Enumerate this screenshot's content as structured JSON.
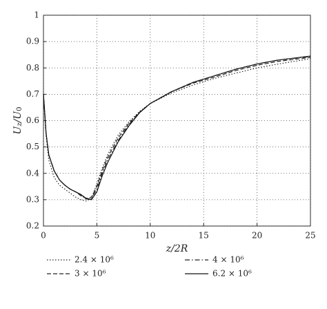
{
  "chart_data": {
    "type": "line",
    "xlabel": "z/2R",
    "ylabel": [
      "U",
      "z",
      "/U",
      "0"
    ],
    "x": [
      0,
      0.25,
      0.5,
      1,
      1.5,
      2,
      2.5,
      3,
      3.5,
      4,
      4.5,
      5,
      5.5,
      6,
      7,
      8,
      9,
      10,
      12,
      14,
      16,
      18,
      20,
      22,
      25
    ],
    "series": [
      {
        "name": "2.4 × 10⁶",
        "color": "#222222",
        "dash": "1.5 2.5",
        "values": [
          0.7,
          0.54,
          0.45,
          0.385,
          0.355,
          0.34,
          0.325,
          0.31,
          0.3,
          0.295,
          0.305,
          0.36,
          0.42,
          0.47,
          0.545,
          0.595,
          0.635,
          0.665,
          0.705,
          0.735,
          0.76,
          0.78,
          0.8,
          0.815,
          0.835
        ]
      },
      {
        "name": "4 × 10⁶",
        "color": "#222222",
        "dash": "7 3 1.5 3",
        "values": [
          0.7,
          0.55,
          0.47,
          0.41,
          0.375,
          0.355,
          0.34,
          0.33,
          0.318,
          0.302,
          0.305,
          0.34,
          0.4,
          0.45,
          0.525,
          0.585,
          0.63,
          0.665,
          0.71,
          0.745,
          0.77,
          0.795,
          0.815,
          0.83,
          0.843
        ]
      },
      {
        "name": "3 × 10⁶",
        "color": "#222222",
        "dash": "6 3",
        "values": [
          0.7,
          0.55,
          0.47,
          0.41,
          0.375,
          0.355,
          0.34,
          0.33,
          0.315,
          0.305,
          0.31,
          0.35,
          0.41,
          0.46,
          0.535,
          0.59,
          0.632,
          0.665,
          0.71,
          0.742,
          0.765,
          0.79,
          0.81,
          0.825,
          0.84
        ]
      },
      {
        "name": "6.2 × 10⁶",
        "color": "#111111",
        "dash": "none",
        "values": [
          0.7,
          0.55,
          0.47,
          0.41,
          0.375,
          0.355,
          0.34,
          0.33,
          0.32,
          0.305,
          0.3,
          0.33,
          0.39,
          0.44,
          0.52,
          0.58,
          0.63,
          0.665,
          0.71,
          0.745,
          0.77,
          0.795,
          0.815,
          0.83,
          0.845
        ]
      }
    ],
    "xlim": [
      0,
      25
    ],
    "xticks": [
      0,
      5,
      10,
      15,
      20,
      25
    ],
    "ylim": [
      0.2,
      1
    ],
    "yticks": [
      0.2,
      0.3,
      0.4,
      0.5,
      0.6,
      0.7,
      0.8,
      0.9,
      1
    ],
    "grid": true,
    "legend": "bottom"
  }
}
